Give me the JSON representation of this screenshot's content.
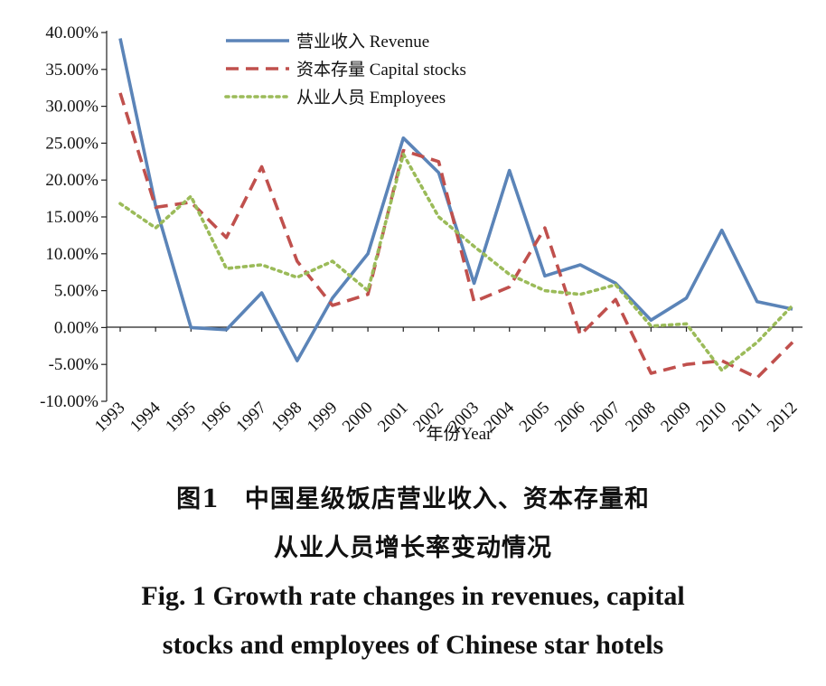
{
  "chart_data": {
    "type": "line",
    "categories": [
      "1993",
      "1994",
      "1995",
      "1996",
      "1997",
      "1998",
      "1999",
      "2000",
      "2001",
      "2002",
      "2003",
      "2004",
      "2005",
      "2006",
      "2007",
      "2008",
      "2009",
      "2010",
      "2011",
      "2012"
    ],
    "series": [
      {
        "name": "营业收入 Revenue",
        "color": "#5b84b8",
        "style": "solid",
        "values": [
          39.2,
          16.5,
          0.0,
          -0.3,
          4.7,
          -4.5,
          4.0,
          10.0,
          25.7,
          21.0,
          6.0,
          21.3,
          7.0,
          8.5,
          6.0,
          1.0,
          4.0,
          13.2,
          3.5,
          2.5
        ]
      },
      {
        "name": "资本存量 Capital stocks",
        "color": "#c0504d",
        "style": "dashed",
        "values": [
          31.8,
          16.3,
          17.0,
          12.2,
          21.8,
          9.0,
          3.0,
          4.5,
          24.0,
          22.5,
          3.5,
          5.5,
          13.5,
          -1.0,
          3.8,
          -6.2,
          -5.0,
          -4.5,
          -6.8,
          -2.0
        ]
      },
      {
        "name": "从业人员 Employees",
        "color": "#9bbb59",
        "style": "dotted",
        "values": [
          16.8,
          13.5,
          17.8,
          8.0,
          8.5,
          6.8,
          9.0,
          5.0,
          23.5,
          15.0,
          11.0,
          7.2,
          5.0,
          4.5,
          5.8,
          0.2,
          0.5,
          -5.8,
          -2.0,
          3.0
        ]
      }
    ],
    "y_ticks": [
      "40.00%",
      "35.00%",
      "30.00%",
      "25.00%",
      "20.00%",
      "15.00%",
      "10.00%",
      "5.00%",
      "0.00%",
      "-5.00%",
      "-10.00%"
    ],
    "ylim": [
      -10,
      40
    ],
    "xlabel": "年份Year",
    "ylabel": "",
    "grid": false,
    "legend_position": "top"
  },
  "caption": {
    "cn_line1": "图1　中国星级饭店营业收入、资本存量和",
    "cn_line2": "从业人员增长率变动情况",
    "en_line1": "Fig. 1   Growth rate changes in revenues, capital",
    "en_line2": "stocks and employees of Chinese star hotels"
  }
}
